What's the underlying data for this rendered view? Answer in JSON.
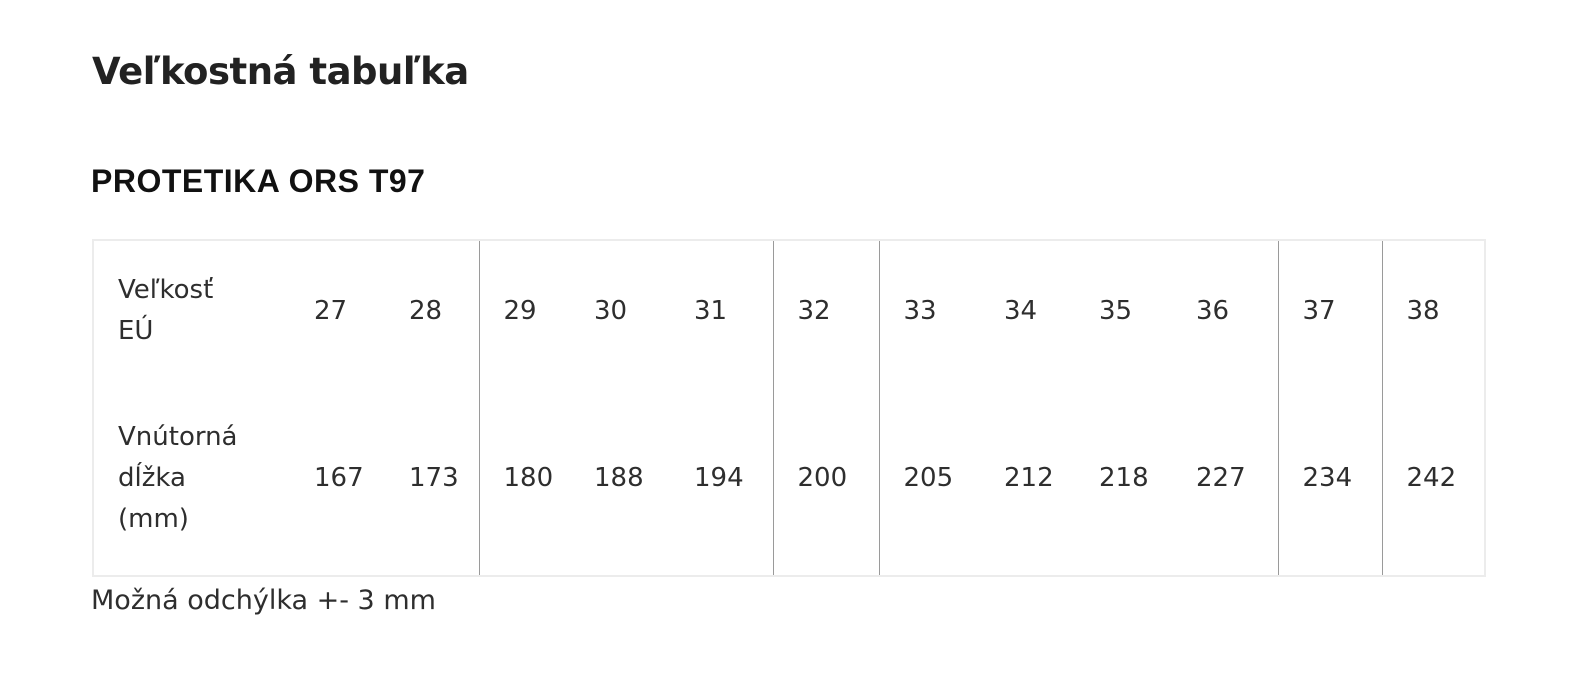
{
  "title": "Veľkostná tabuľka",
  "subtitle": "PROTETIKA ORS T97",
  "table": {
    "rows": [
      {
        "label": [
          "Veľkosť",
          "EÚ"
        ],
        "values": [
          "27",
          "28",
          "29",
          "30",
          "31",
          "32",
          "33",
          "34",
          "35",
          "36",
          "37",
          "38"
        ]
      },
      {
        "label": [
          "Vnútorná",
          "dĺžka",
          "(mm)"
        ],
        "values": [
          "167",
          "173",
          "180",
          "188",
          "194",
          "200",
          "205",
          "212",
          "218",
          "227",
          "234",
          "242"
        ]
      }
    ]
  },
  "note": "Možná odchýlka +- 3 mm"
}
